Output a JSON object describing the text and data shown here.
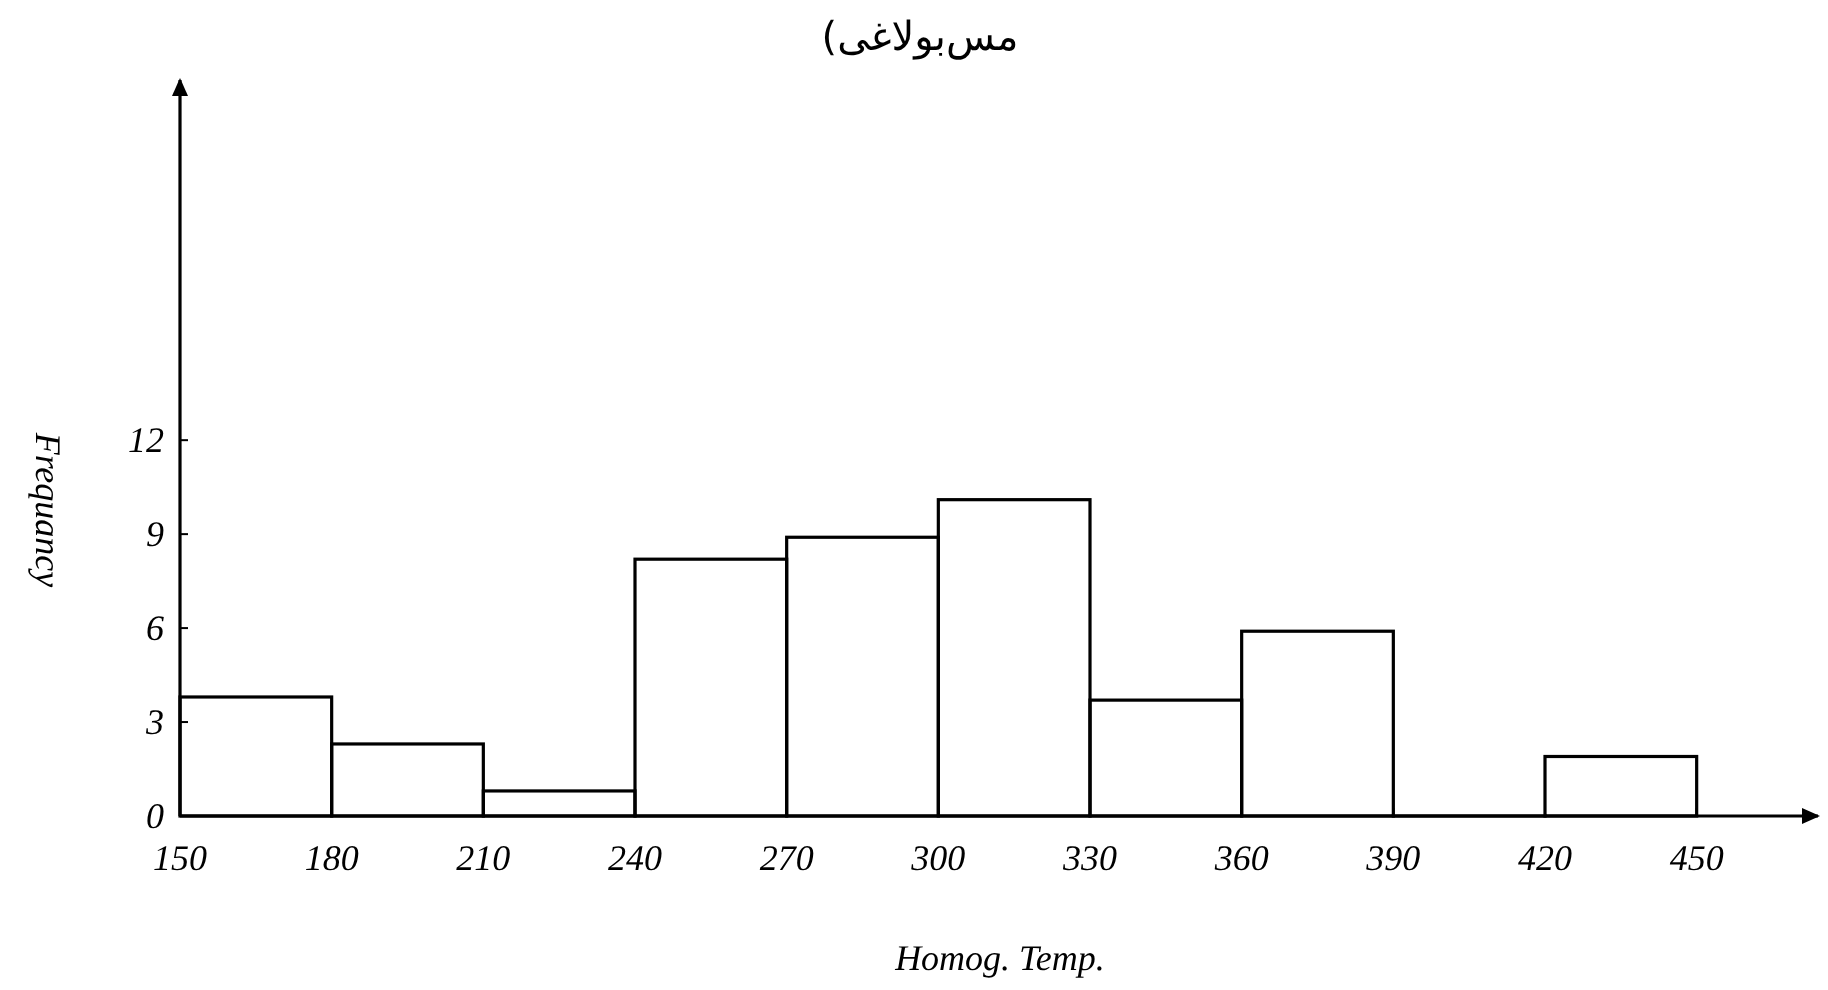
{
  "chart_data": {
    "type": "histogram",
    "title": "مس‌بولاغی)",
    "xlabel": "Homog. Temp.",
    "ylabel": "Frequancy",
    "bins": [
      150,
      180,
      210,
      240,
      270,
      300,
      330,
      360,
      390,
      420,
      450
    ],
    "values": [
      3.8,
      2.3,
      0.8,
      8.2,
      8.9,
      10.1,
      3.7,
      5.9,
      0,
      1.9
    ],
    "color": "#000000",
    "xlim": [
      150,
      474
    ],
    "ylim": [
      0,
      23.5
    ],
    "xticks": [
      150,
      180,
      210,
      240,
      270,
      300,
      330,
      360,
      390,
      420,
      450
    ],
    "yticks": [
      0,
      3,
      6,
      9,
      12
    ]
  }
}
